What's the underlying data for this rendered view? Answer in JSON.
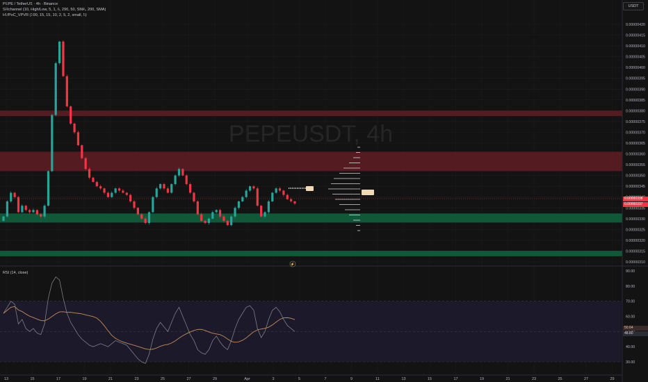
{
  "header": {
    "symbol_line": "PEPE / TetherUS · 4h · Binance",
    "indicator1": "SRchannel (10, High/Low, 5, 1, 6, 290, 50, SMA, 200, SMA)",
    "indicator2": "HVPoC_VPVR (100, 15, 15, 10, 2, 5, 2, small, 5)",
    "currency": "USDT"
  },
  "watermark": "PEPEUSDT, 4h",
  "price_axis": {
    "labels": [
      "0.00000420",
      "0.00000415",
      "0.00000410",
      "0.00000405",
      "0.00000400",
      "0.00000395",
      "0.00000390",
      "0.00000385",
      "0.00000380",
      "0.00000375",
      "0.00000370",
      "0.00000365",
      "0.00000360",
      "0.00000355",
      "0.00000350",
      "0.00000345",
      "0.00000340",
      "0.00000335",
      "0.00000330",
      "0.00000325",
      "0.00000320",
      "0.00000315",
      "0.00000310"
    ],
    "last_price_1": "0.00000338",
    "last_price_2": "0.00000337"
  },
  "rsi": {
    "label": "RSI (14, close)",
    "axis_labels": [
      "90.00",
      "80.00",
      "70.00",
      "60.00",
      "50.00",
      "40.00",
      "30.00"
    ],
    "value_1": "50.64",
    "value_2": "48.80"
  },
  "time_axis": {
    "labels": [
      "13",
      "15",
      "17",
      "19",
      "21",
      "23",
      "25",
      "27",
      "29",
      "Apr",
      "3",
      "5",
      "7",
      "9",
      "11",
      "13",
      "15",
      "17",
      "19",
      "21",
      "23",
      "25",
      "27",
      "29"
    ]
  },
  "colors": {
    "bull": "#26a69a",
    "bear": "#f23645",
    "resistance_zone": "#5c1d22",
    "support_zone": "#0f5c3a",
    "rsi_line": "#7e7f87",
    "rsi_ma": "#c58b55"
  },
  "chart_data": {
    "type": "candlestick",
    "resistance_zones": [
      [
        3.775e-06,
        3.8e-06
      ],
      [
        3.52e-06,
        3.61e-06
      ]
    ],
    "support_zones": [
      [
        3.282e-06,
        3.324e-06
      ],
      [
        3.126e-06,
        3.151e-06
      ]
    ],
    "close_series": [
      3.31,
      3.38,
      3.42,
      3.4,
      3.33,
      3.36,
      3.34,
      3.33,
      3.34,
      3.32,
      3.31,
      3.36,
      3.52,
      3.78,
      4.02,
      4.12,
      3.96,
      3.82,
      3.74,
      3.7,
      3.64,
      3.58,
      3.53,
      3.49,
      3.47,
      3.45,
      3.44,
      3.42,
      3.4,
      3.42,
      3.44,
      3.43,
      3.42,
      3.41,
      3.38,
      3.35,
      3.32,
      3.3,
      3.28,
      3.33,
      3.4,
      3.44,
      3.46,
      3.44,
      3.42,
      3.46,
      3.5,
      3.53,
      3.5,
      3.46,
      3.42,
      3.38,
      3.32,
      3.29,
      3.28,
      3.3,
      3.33,
      3.34,
      3.31,
      3.29,
      3.27,
      3.31,
      3.35,
      3.38,
      3.4,
      3.43,
      3.45,
      3.44,
      3.36,
      3.31,
      3.33,
      3.38,
      3.42,
      3.44,
      3.43,
      3.41,
      3.39,
      3.38,
      3.37
    ],
    "rsi_values": [
      62,
      66,
      70,
      68,
      55,
      58,
      52,
      50,
      52,
      49,
      48,
      55,
      72,
      82,
      86,
      84,
      72,
      62,
      56,
      52,
      48,
      45,
      43,
      41,
      40,
      41,
      42,
      41,
      40,
      42,
      44,
      43,
      42,
      41,
      38,
      35,
      32,
      30,
      29,
      35,
      45,
      52,
      56,
      53,
      50,
      56,
      62,
      66,
      60,
      54,
      48,
      44,
      38,
      36,
      35,
      38,
      44,
      47,
      43,
      40,
      38,
      44,
      52,
      58,
      62,
      66,
      67,
      64,
      52,
      46,
      50,
      58,
      64,
      66,
      63,
      58,
      54,
      52,
      50
    ],
    "xlabel": "",
    "ylabel": ""
  }
}
